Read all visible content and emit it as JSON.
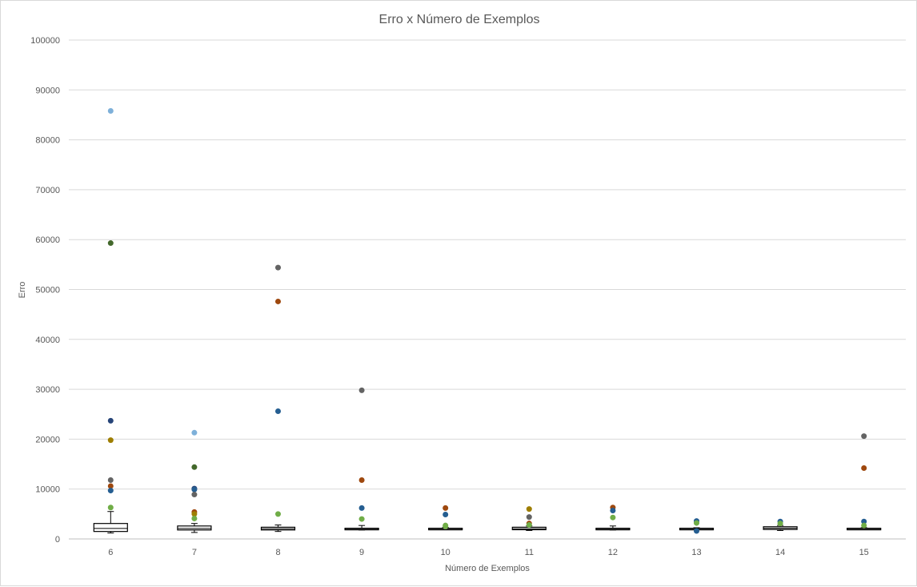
{
  "chart_data": {
    "type": "box",
    "title": "Erro x Número de Exemplos",
    "xlabel": "Número de Exemplos",
    "ylabel": "Erro",
    "ylim": [
      0,
      100000
    ],
    "yticks": [
      0,
      10000,
      20000,
      30000,
      40000,
      50000,
      60000,
      70000,
      80000,
      90000,
      100000
    ],
    "categories": [
      "6",
      "7",
      "8",
      "9",
      "10",
      "11",
      "12",
      "13",
      "14",
      "15"
    ],
    "grid": true,
    "legend": "none",
    "boxes": [
      {
        "category": "6",
        "whisker_low": 1200,
        "q1": 1500,
        "median": 2100,
        "q3": 3100,
        "whisker_high": 5500
      },
      {
        "category": "7",
        "whisker_low": 1300,
        "q1": 1800,
        "median": 2100,
        "q3": 2600,
        "whisker_high": 3100
      },
      {
        "category": "8",
        "whisker_low": 1500,
        "q1": 1800,
        "median": 2050,
        "q3": 2350,
        "whisker_high": 2800
      },
      {
        "category": "9",
        "whisker_low": 1800,
        "q1": 1900,
        "median": 2050,
        "q3": 2150,
        "whisker_high": 2700
      },
      {
        "category": "10",
        "whisker_low": 1850,
        "q1": 1950,
        "median": 2050,
        "q3": 2150,
        "whisker_high": 2300
      },
      {
        "category": "11",
        "whisker_low": 1700,
        "q1": 1850,
        "median": 2050,
        "q3": 2350,
        "whisker_high": 2600
      },
      {
        "category": "12",
        "whisker_low": 1800,
        "q1": 1900,
        "median": 2050,
        "q3": 2150,
        "whisker_high": 2600
      },
      {
        "category": "13",
        "whisker_low": 1850,
        "q1": 1950,
        "median": 2050,
        "q3": 2150,
        "whisker_high": 2250
      },
      {
        "category": "14",
        "whisker_low": 1700,
        "q1": 1900,
        "median": 2150,
        "q3": 2450,
        "whisker_high": 2700
      },
      {
        "category": "15",
        "whisker_low": 1850,
        "q1": 1950,
        "median": 2050,
        "q3": 2150,
        "whisker_high": 2250
      }
    ],
    "outliers": [
      {
        "category": "6",
        "values": [
          85800,
          59300,
          23700,
          19800,
          11800,
          10600,
          9700,
          6300
        ],
        "colors": [
          "#7eb0d9",
          "#43682b",
          "#264478",
          "#9e7e00",
          "#636363",
          "#9e480e",
          "#255e91",
          "#70ad47"
        ]
      },
      {
        "category": "7",
        "values": [
          21300,
          14400,
          10100,
          9900,
          8900,
          5400,
          5000,
          4100
        ],
        "colors": [
          "#7eb0d9",
          "#43682b",
          "#264478",
          "#255e91",
          "#636363",
          "#9e480e",
          "#9e7e00",
          "#70ad47"
        ]
      },
      {
        "category": "8",
        "values": [
          54400,
          47600,
          25600,
          5000
        ],
        "colors": [
          "#636363",
          "#9e480e",
          "#255e91",
          "#70ad47"
        ]
      },
      {
        "category": "9",
        "values": [
          29800,
          11800,
          6200,
          4000
        ],
        "colors": [
          "#636363",
          "#9e480e",
          "#255e91",
          "#70ad47"
        ]
      },
      {
        "category": "10",
        "values": [
          6200,
          4900,
          2700,
          2500
        ],
        "colors": [
          "#9e480e",
          "#255e91",
          "#70ad47",
          "#70ad47"
        ]
      },
      {
        "category": "11",
        "values": [
          6000,
          4400,
          3100,
          2800
        ],
        "colors": [
          "#9e7e00",
          "#636363",
          "#9e480e",
          "#70ad47"
        ]
      },
      {
        "category": "12",
        "values": [
          6300,
          5700,
          4300
        ],
        "colors": [
          "#9e480e",
          "#255e91",
          "#70ad47"
        ]
      },
      {
        "category": "13",
        "values": [
          3600,
          3200,
          1600
        ],
        "colors": [
          "#255e91",
          "#70ad47",
          "#255e91"
        ]
      },
      {
        "category": "14",
        "values": [
          3500,
          3100
        ],
        "colors": [
          "#255e91",
          "#70ad47"
        ]
      },
      {
        "category": "15",
        "values": [
          20600,
          14200,
          3500,
          2700
        ],
        "colors": [
          "#636363",
          "#9e480e",
          "#255e91",
          "#70ad47"
        ]
      }
    ]
  }
}
